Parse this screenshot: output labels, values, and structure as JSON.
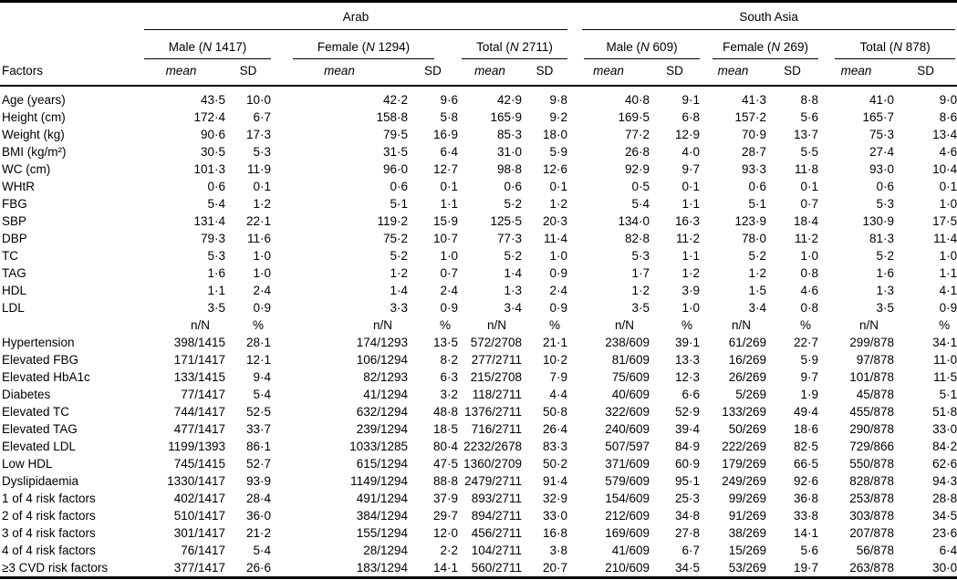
{
  "colors": {
    "text": "#000000",
    "rule": "#000000",
    "background": "#ffffff"
  },
  "table": {
    "factors_header": "Factors",
    "regions": [
      {
        "label": "Arab"
      },
      {
        "label": "South Asia"
      }
    ],
    "subgroups": [
      {
        "pre": "Male (",
        "n": "N",
        "post": " 1417)"
      },
      {
        "pre": "Female (",
        "n": "N",
        "post": " 1294)"
      },
      {
        "pre": "Total (",
        "n": "N",
        "post": " 2711)"
      },
      {
        "pre": "Male (",
        "n": "N",
        "post": " 609)"
      },
      {
        "pre": "Female (",
        "n": "N",
        "post": " 269)"
      },
      {
        "pre": "Total (",
        "n": "N",
        "post": " 878)"
      }
    ],
    "col_labels": {
      "mean": "mean",
      "sd": "SD"
    },
    "subheader": {
      "ratio": "n/N",
      "percent": "%"
    },
    "continuous_rows": [
      {
        "factor": "Age (years)",
        "values": [
          "43·5",
          "10·0",
          "42·2",
          "9·6",
          "42·9",
          "9·8",
          "40·8",
          "9·1",
          "41·3",
          "8·8",
          "41·0",
          "9·0"
        ]
      },
      {
        "factor": "Height (cm)",
        "values": [
          "172·4",
          "6·7",
          "158·8",
          "5·8",
          "165·9",
          "9·2",
          "169·5",
          "6·8",
          "157·2",
          "5·6",
          "165·7",
          "8·6"
        ]
      },
      {
        "factor": "Weight (kg)",
        "values": [
          "90·6",
          "17·3",
          "79·5",
          "16·9",
          "85·3",
          "18·0",
          "77·2",
          "12·9",
          "70·9",
          "13·7",
          "75·3",
          "13·4"
        ]
      },
      {
        "factor": "BMI (kg/m²)",
        "values": [
          "30·5",
          "5·3",
          "31·5",
          "6·4",
          "31·0",
          "5·9",
          "26·8",
          "4·0",
          "28·7",
          "5·5",
          "27·4",
          "4·6"
        ]
      },
      {
        "factor": "WC (cm)",
        "values": [
          "101·3",
          "11·9",
          "96·0",
          "12·7",
          "98·8",
          "12·6",
          "92·9",
          "9·7",
          "93·3",
          "11·8",
          "93·0",
          "10·4"
        ]
      },
      {
        "factor": "WHtR",
        "values": [
          "0·6",
          "0·1",
          "0·6",
          "0·1",
          "0·6",
          "0·1",
          "0·5",
          "0·1",
          "0·6",
          "0·1",
          "0·6",
          "0·1"
        ]
      },
      {
        "factor": "FBG",
        "values": [
          "5·4",
          "1·2",
          "5·1",
          "1·1",
          "5·2",
          "1·2",
          "5·4",
          "1·1",
          "5·1",
          "0·7",
          "5·3",
          "1·0"
        ]
      },
      {
        "factor": "SBP",
        "values": [
          "131·4",
          "22·1",
          "119·2",
          "15·9",
          "125·5",
          "20·3",
          "134·0",
          "16·3",
          "123·9",
          "18·4",
          "130·9",
          "17·5"
        ]
      },
      {
        "factor": "DBP",
        "values": [
          "79·3",
          "11·6",
          "75·2",
          "10·7",
          "77·3",
          "11·4",
          "82·8",
          "11·2",
          "78·0",
          "11·2",
          "81·3",
          "11·4"
        ]
      },
      {
        "factor": "TC",
        "values": [
          "5·3",
          "1·0",
          "5·2",
          "1·0",
          "5·2",
          "1·0",
          "5·3",
          "1·1",
          "5·2",
          "1·0",
          "5·2",
          "1·0"
        ]
      },
      {
        "factor": "TAG",
        "values": [
          "1·6",
          "1·0",
          "1·2",
          "0·7",
          "1·4",
          "0·9",
          "1·7",
          "1·2",
          "1·2",
          "0·8",
          "1·6",
          "1·1"
        ]
      },
      {
        "factor": "HDL",
        "values": [
          "1·1",
          "2·4",
          "1·4",
          "2·4",
          "1·3",
          "2·4",
          "1·2",
          "3·9",
          "1·5",
          "4·6",
          "1·3",
          "4·1"
        ]
      },
      {
        "factor": "LDL",
        "values": [
          "3·5",
          "0·9",
          "3·3",
          "0·9",
          "3·4",
          "0·9",
          "3·5",
          "1·0",
          "3·4",
          "0·8",
          "3·5",
          "0·9"
        ]
      }
    ],
    "categorical_rows": [
      {
        "factor": "Hypertension",
        "values": [
          "398/1415",
          "28·1",
          "174/1293",
          "13·5",
          "572/2708",
          "21·1",
          "238/609",
          "39·1",
          "61/269",
          "22·7",
          "299/878",
          "34·1"
        ]
      },
      {
        "factor": "Elevated FBG",
        "values": [
          "171/1417",
          "12·1",
          "106/1294",
          "8·2",
          "277/2711",
          "10·2",
          "81/609",
          "13·3",
          "16/269",
          "5·9",
          "97/878",
          "11·0"
        ]
      },
      {
        "factor": "Elevated HbA1c",
        "values": [
          "133/1415",
          "9·4",
          "82/1293",
          "6·3",
          "215/2708",
          "7·9",
          "75/609",
          "12·3",
          "26/269",
          "9·7",
          "101/878",
          "11·5"
        ]
      },
      {
        "factor": "Diabetes",
        "values": [
          "77/1417",
          "5·4",
          "41/1294",
          "3·2",
          "118/2711",
          "4·4",
          "40/609",
          "6·6",
          "5/269",
          "1·9",
          "45/878",
          "5·1"
        ]
      },
      {
        "factor": "Elevated TC",
        "values": [
          "744/1417",
          "52·5",
          "632/1294",
          "48·8",
          "1376/2711",
          "50·8",
          "322/609",
          "52·9",
          "133/269",
          "49·4",
          "455/878",
          "51·8"
        ]
      },
      {
        "factor": "Elevated TAG",
        "values": [
          "477/1417",
          "33·7",
          "239/1294",
          "18·5",
          "716/2711",
          "26·4",
          "240/609",
          "39·4",
          "50/269",
          "18·6",
          "290/878",
          "33·0"
        ]
      },
      {
        "factor": "Elevated LDL",
        "values": [
          "1199/1393",
          "86·1",
          "1033/1285",
          "80·4",
          "2232/2678",
          "83·3",
          "507/597",
          "84·9",
          "222/269",
          "82·5",
          "729/866",
          "84·2"
        ]
      },
      {
        "factor": "Low HDL",
        "values": [
          "745/1415",
          "52·7",
          "615/1294",
          "47·5",
          "1360/2709",
          "50·2",
          "371/609",
          "60·9",
          "179/269",
          "66·5",
          "550/878",
          "62·6"
        ]
      },
      {
        "factor": "Dyslipidaemia",
        "values": [
          "1330/1417",
          "93·9",
          "1149/1294",
          "88·8",
          "2479/2711",
          "91·4",
          "579/609",
          "95·1",
          "249/269",
          "92·6",
          "828/878",
          "94·3"
        ]
      },
      {
        "factor": "1 of 4 risk factors",
        "values": [
          "402/1417",
          "28·4",
          "491/1294",
          "37·9",
          "893/2711",
          "32·9",
          "154/609",
          "25·3",
          "99/269",
          "36·8",
          "253/878",
          "28·8"
        ]
      },
      {
        "factor": "2 of 4 risk factors",
        "values": [
          "510/1417",
          "36·0",
          "384/1294",
          "29·7",
          "894/2711",
          "33·0",
          "212/609",
          "34·8",
          "91/269",
          "33·8",
          "303/878",
          "34·5"
        ]
      },
      {
        "factor": "3 of 4 risk factors",
        "values": [
          "301/1417",
          "21·2",
          "155/1294",
          "12·0",
          "456/2711",
          "16·8",
          "169/609",
          "27·8",
          "38/269",
          "14·1",
          "207/878",
          "23·6"
        ]
      },
      {
        "factor": "4 of 4 risk factors",
        "values": [
          "76/1417",
          "5·4",
          "28/1294",
          "2·2",
          "104/2711",
          "3·8",
          "41/609",
          "6·7",
          "15/269",
          "5·6",
          "56/878",
          "6·4"
        ]
      },
      {
        "factor": "≥3 CVD risk factors",
        "values": [
          "377/1417",
          "26·6",
          "183/1294",
          "14·1",
          "560/2711",
          "20·7",
          "210/609",
          "34·5",
          "53/269",
          "19·7",
          "263/878",
          "30·0"
        ]
      }
    ]
  }
}
